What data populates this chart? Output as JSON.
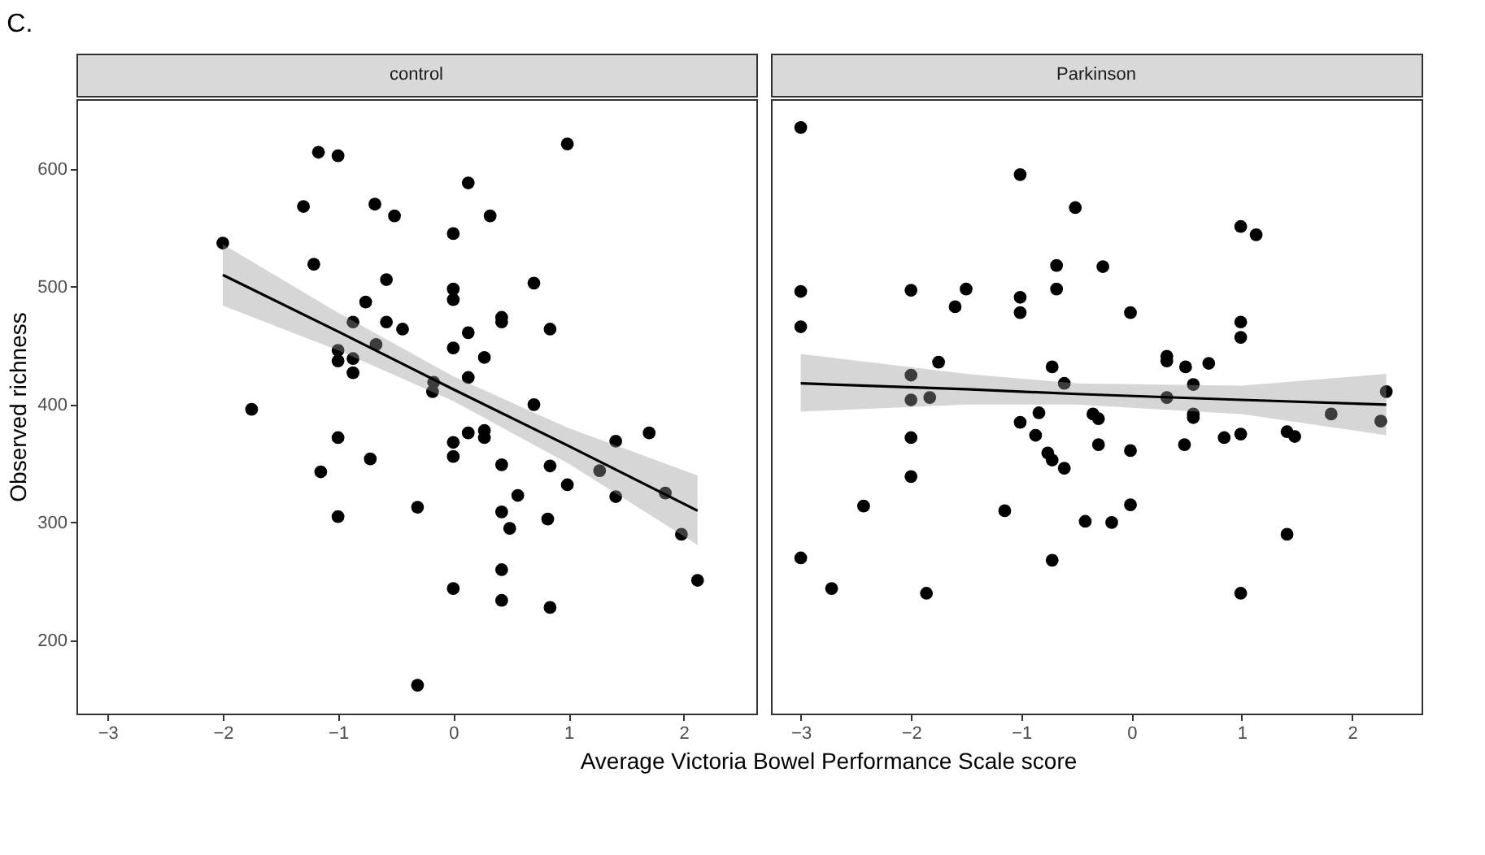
{
  "chart_data": [
    {
      "type": "scatter",
      "title": "control",
      "xlabel": "Average Victoria Bowel Performance Scale score",
      "ylabel": "Observed richness",
      "annotations": [
        "C."
      ],
      "xlim": [
        -3.27,
        2.63
      ],
      "xticks": [
        -3,
        -2,
        -1,
        0,
        1,
        2
      ],
      "ylim": [
        138,
        659
      ],
      "yticks": [
        200,
        300,
        400,
        500,
        600
      ],
      "series": [
        {
          "color": "#000000",
          "marker": "circle",
          "x": [
            -1.17,
            -1.0,
            -1.3,
            -0.68,
            -0.51,
            -2.0,
            -1.21,
            -0.58,
            -0.76,
            -0.87,
            -0.58,
            -0.44,
            -0.67,
            -1.0,
            -1.0,
            -0.87,
            -0.87,
            -1.75,
            -1.0,
            -0.72,
            -1.15,
            -1.0,
            -0.31,
            -0.31,
            0.99,
            0.13,
            0.32,
            0,
            0.7,
            0,
            0,
            0.42,
            0.42,
            0.84,
            0.13,
            0,
            0.27,
            0.13,
            -0.17,
            -0.18,
            0.7,
            1.7,
            1.41,
            0.13,
            0.27,
            0.27,
            0,
            0,
            0.42,
            0.84,
            1.27,
            0.99,
            1.41,
            0.56,
            1.84,
            0.42,
            0.49,
            0.82,
            1.98,
            2.12,
            0.42,
            0,
            0.42,
            0.84
          ],
          "values": [
            614,
            611,
            568,
            570,
            560,
            537,
            519,
            506,
            487,
            470,
            470,
            464,
            451,
            446,
            437,
            439,
            427,
            396,
            372,
            354,
            343,
            305,
            313,
            162,
            621,
            588,
            560,
            545,
            503,
            498,
            489,
            474,
            470,
            464,
            461,
            448,
            440,
            423,
            419,
            411,
            400,
            376,
            369,
            376,
            378,
            372,
            368,
            356,
            349,
            348,
            344,
            332,
            322,
            323,
            325,
            309,
            295,
            303,
            290,
            251,
            260,
            244,
            234,
            228
          ]
        },
        {
          "type": "line",
          "color": "#000000",
          "marker": "none",
          "x": [
            -2,
            -1,
            0,
            1,
            2.12
          ],
          "values": [
            510,
            462,
            413,
            365,
            310
          ],
          "lower": [
            484,
            446,
            403,
            350,
            281
          ],
          "upper": [
            536,
            478,
            424,
            380,
            340
          ]
        }
      ]
    },
    {
      "type": "scatter",
      "title": "Parkinson",
      "xlim": [
        -3.27,
        2.63
      ],
      "xticks": [
        -3,
        -2,
        -1,
        0,
        1,
        2
      ],
      "ylim": [
        138,
        659
      ],
      "yticks": [
        200,
        300,
        400,
        500,
        600
      ],
      "tick_labels": "x",
      "series": [
        {
          "color": "#000000",
          "marker": "circle",
          "x": [
            -3,
            -1.01,
            -0.51,
            -0.68,
            -3,
            -2,
            -1.5,
            -1.6,
            -1.01,
            -1.01,
            -0.68,
            -3,
            -1.75,
            -0.72,
            -2,
            -0.61,
            -1.83,
            -2,
            -0.84,
            -1.01,
            -0.87,
            -2,
            -0.76,
            -0.72,
            -0.61,
            -2,
            -2.43,
            -1.15,
            -0.42,
            -3,
            -0.72,
            -2.72,
            -1.86,
            0.99,
            1.13,
            -0.26,
            -0.01,
            0.99,
            0.99,
            0.32,
            0.32,
            0.49,
            0.7,
            0.56,
            0.32,
            2.31,
            1.81,
            2.26,
            0.56,
            0.56,
            -0.35,
            -0.3,
            -0.3,
            -0.01,
            0.48,
            0.84,
            0.99,
            1.41,
            1.48,
            -0.01,
            -0.18,
            1.41,
            0.99
          ],
          "values": [
            635,
            595,
            567,
            518,
            496,
            497,
            498,
            483,
            491,
            478,
            498,
            466,
            436,
            432,
            425,
            418,
            406,
            404,
            393,
            385,
            374,
            372,
            359,
            353,
            346,
            339,
            314,
            310,
            301,
            270,
            268,
            244,
            240,
            551,
            544,
            517,
            478,
            470,
            457,
            441,
            437,
            432,
            435,
            417,
            406,
            411,
            392,
            386,
            392,
            389,
            392,
            388,
            366,
            361,
            366,
            372,
            375,
            377,
            373,
            315,
            300,
            290,
            240
          ]
        },
        {
          "type": "line",
          "color": "#000000",
          "marker": "none",
          "x": [
            -3,
            -1.5,
            -0.5,
            1,
            2.31
          ],
          "values": [
            418,
            413,
            409,
            404,
            400
          ],
          "lower": [
            394,
            400,
            400,
            392,
            374
          ],
          "upper": [
            443,
            426,
            418,
            416,
            426
          ]
        }
      ]
    }
  ]
}
